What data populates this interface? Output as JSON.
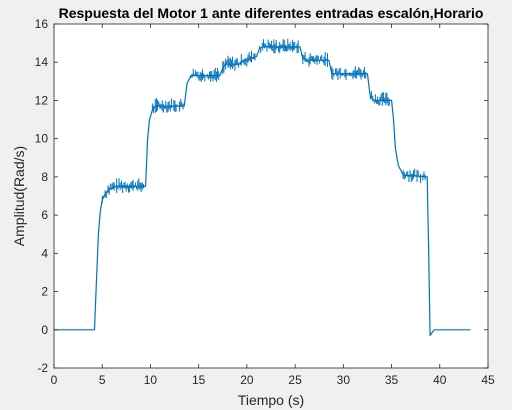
{
  "figure": {
    "background_color": "#f0f0f0",
    "axes_background_color": "#ffffff",
    "axis_color": "#262626",
    "line_color": "#0072bd"
  },
  "chart_data": {
    "type": "line",
    "title": "Respuesta del Motor 1 ante diferentes entradas escalón,Horario",
    "xlabel": "Tiempo (s)",
    "ylabel": "Amplitud(Rad/s)",
    "xlim": [
      0,
      45
    ],
    "ylim": [
      -2,
      16
    ],
    "grid": false,
    "legend": "none",
    "xticks": [
      0,
      5,
      10,
      15,
      20,
      25,
      30,
      35,
      40,
      45
    ],
    "yticks": [
      -2,
      0,
      2,
      4,
      6,
      8,
      10,
      12,
      14,
      16
    ],
    "xtick_labels": [
      "0",
      "5",
      "10",
      "15",
      "20",
      "25",
      "30",
      "35",
      "40",
      "45"
    ],
    "ytick_labels": [
      "-2",
      "0",
      "2",
      "4",
      "6",
      "8",
      "10",
      "12",
      "14",
      "16"
    ],
    "series": [
      {
        "color": "#0072bd",
        "x": [
          0,
          4.2,
          4.4,
          4.6,
          4.8,
          5.0,
          5.3,
          5.6,
          6.0,
          6.5,
          7.0,
          9.5,
          9.7,
          9.9,
          10.2,
          10.5,
          13.5,
          13.8,
          14.2,
          17.2,
          17.5,
          17.8,
          19.3,
          19.6,
          20.0,
          21.0,
          21.3,
          21.6,
          25.5,
          25.8,
          26.2,
          28.5,
          28.8,
          29.2,
          32.5,
          32.8,
          33.2,
          35.0,
          35.2,
          35.4,
          35.7,
          36.2,
          38.7,
          38.85,
          39.0,
          39.4,
          43.2
        ],
        "y": [
          0,
          0,
          2.5,
          5.0,
          6.2,
          6.8,
          7.1,
          7.3,
          7.4,
          7.5,
          7.5,
          7.5,
          10.0,
          11.0,
          11.5,
          11.7,
          11.7,
          12.9,
          13.3,
          13.3,
          13.7,
          13.9,
          13.9,
          14.1,
          14.1,
          14.3,
          14.7,
          14.8,
          14.8,
          14.2,
          14.1,
          14.1,
          13.4,
          13.4,
          13.4,
          12.2,
          12.0,
          12.0,
          11.0,
          9.5,
          8.6,
          8.1,
          8.0,
          4.0,
          -0.3,
          0,
          0
        ]
      }
    ]
  }
}
